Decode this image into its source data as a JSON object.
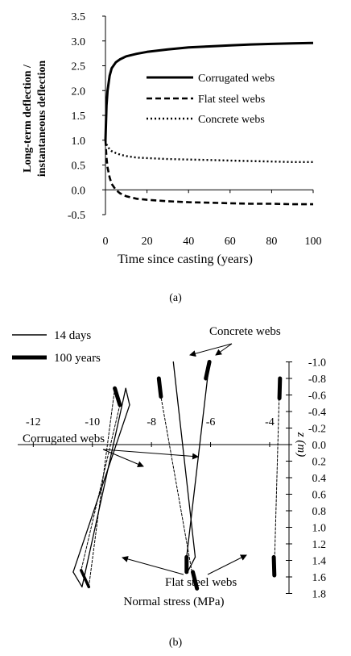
{
  "chart_data": [
    {
      "type": "line",
      "xlabel": "Time since casting (years)",
      "ylabel_line1": "Long-term deflection /",
      "ylabel_line2": "instantaneous deflection",
      "xlim": [
        0,
        100
      ],
      "ylim": [
        -0.5,
        3.5
      ],
      "xticks": [
        0,
        20,
        40,
        60,
        80,
        100
      ],
      "yticks": [
        "-0.5",
        "0.0",
        "0.5",
        "1.0",
        "1.5",
        "2.0",
        "2.5",
        "3.0",
        "3.5"
      ],
      "grid": false,
      "legend_position": "right",
      "series": [
        {
          "name": "Corrugated webs",
          "style": "solid",
          "x": [
            0,
            0.5,
            1,
            2,
            3,
            5,
            7,
            10,
            15,
            20,
            30,
            40,
            50,
            60,
            70,
            80,
            90,
            100
          ],
          "y": [
            1.0,
            1.7,
            2.0,
            2.3,
            2.45,
            2.57,
            2.63,
            2.69,
            2.74,
            2.78,
            2.83,
            2.87,
            2.89,
            2.91,
            2.93,
            2.94,
            2.95,
            2.96
          ]
        },
        {
          "name": "Flat steel webs",
          "style": "dashed",
          "x": [
            0,
            0.5,
            1,
            2,
            3,
            5,
            7,
            10,
            15,
            20,
            30,
            40,
            50,
            60,
            70,
            80,
            90,
            100
          ],
          "y": [
            1.0,
            0.65,
            0.45,
            0.25,
            0.12,
            0.0,
            -0.07,
            -0.13,
            -0.18,
            -0.2,
            -0.23,
            -0.25,
            -0.26,
            -0.27,
            -0.28,
            -0.28,
            -0.29,
            -0.29
          ]
        },
        {
          "name": "Concrete webs",
          "style": "dotted",
          "x": [
            0,
            0.5,
            1,
            2,
            3,
            5,
            7,
            10,
            15,
            20,
            30,
            40,
            50,
            60,
            70,
            80,
            90,
            100
          ],
          "y": [
            1.0,
            0.92,
            0.87,
            0.82,
            0.78,
            0.74,
            0.71,
            0.68,
            0.65,
            0.64,
            0.62,
            0.61,
            0.6,
            0.59,
            0.58,
            0.57,
            0.56,
            0.56
          ]
        }
      ],
      "caption": "(a)"
    },
    {
      "type": "line",
      "xlabel": "Normal stress (MPa)",
      "ylabel": "z (m)",
      "xlim": [
        -12.5,
        -2.5
      ],
      "ylim": [
        -1.0,
        1.8
      ],
      "xticks": [
        -12,
        -10,
        -8,
        -6,
        -4
      ],
      "yticks": [
        "-1.0",
        "-0.8",
        "-0.6",
        "-0.4",
        "-0.2",
        "0.0",
        "0.2",
        "0.4",
        "0.6",
        "0.8",
        "1.0",
        "1.2",
        "1.4",
        "1.6",
        "1.8"
      ],
      "legend": [
        {
          "label": "14 days",
          "style": "thin"
        },
        {
          "label": "100 years",
          "style": "thick"
        }
      ],
      "series": [
        {
          "group": "Corrugated webs",
          "time": "14 days",
          "x": [
            -8.87,
            -8.74,
            -10.65,
            -10.35
          ],
          "y": [
            -0.68,
            -0.48,
            1.54,
            1.72
          ]
        },
        {
          "group": "Corrugated webs",
          "time": "100 years",
          "x": [
            -9.24,
            -9.07,
            -10.38,
            -10.12
          ],
          "y": [
            -0.68,
            -0.48,
            1.52,
            1.72
          ]
        },
        {
          "group": "Concrete webs",
          "time": "14 days",
          "x": [
            -7.26,
            -6.52,
            -6.78
          ],
          "y": [
            -1.0,
            1.36,
            1.54
          ]
        },
        {
          "group": "Concrete webs",
          "time": "100 years",
          "x": [
            -6.04,
            -6.16,
            -6.81
          ],
          "y": [
            -1.0,
            -0.8,
            1.36
          ]
        },
        {
          "group": "Flat steel webs",
          "time": "14 days",
          "x": [
            -7.79,
            -7.87,
            -6.63,
            -3.66,
            -3.83
          ],
          "y": [
            -0.8,
            -0.58,
            1.54,
            -0.8,
            1.36
          ]
        },
        {
          "group": "Flat steel webs",
          "time": "100 years",
          "x": [
            -7.75,
            -7.68,
            -6.6,
            -6.46,
            -3.65,
            -3.67,
            -3.86,
            -3.84
          ],
          "y": [
            -0.8,
            -0.58,
            1.54,
            1.74,
            -0.8,
            -0.56,
            1.36,
            1.58
          ]
        }
      ],
      "annotations": [
        "Concrete webs",
        "Corrugated webs",
        "Flat steel webs"
      ],
      "caption": "(b)"
    }
  ]
}
